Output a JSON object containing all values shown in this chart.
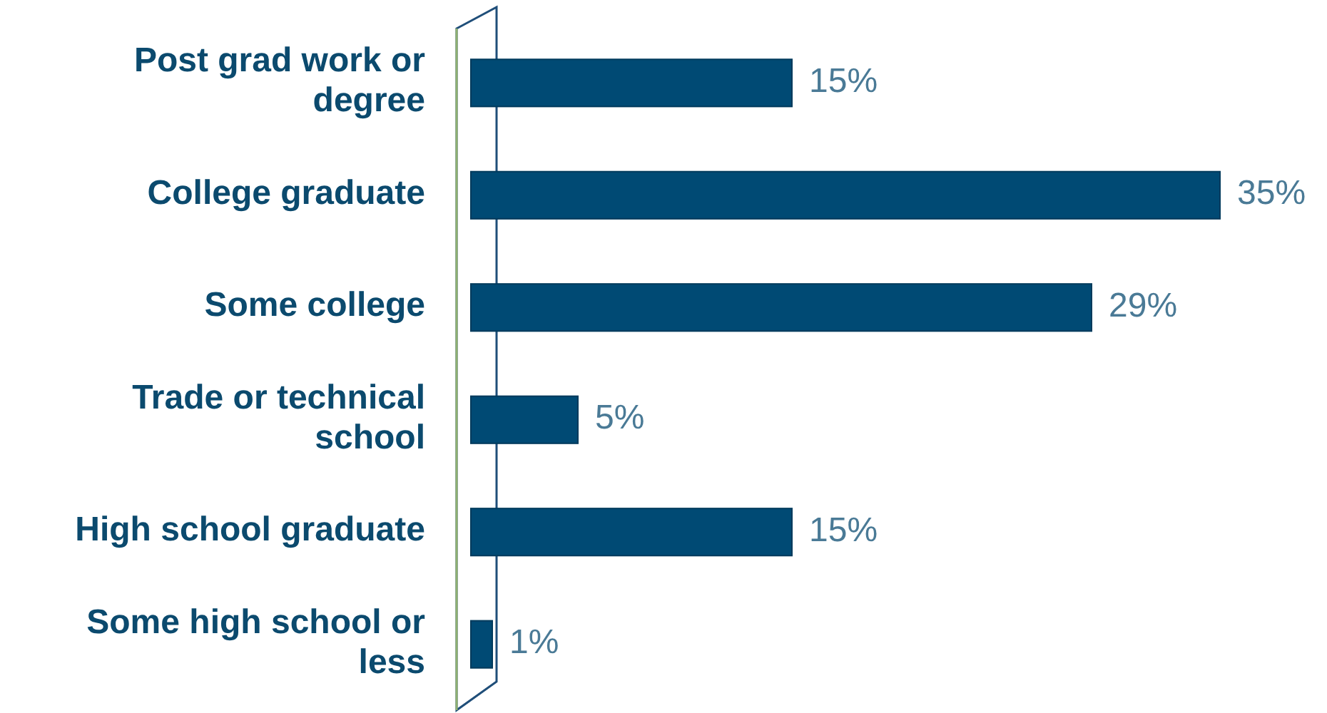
{
  "chart_data": {
    "type": "bar",
    "orientation": "horizontal",
    "categories": [
      "Post grad work or degree",
      "College graduate",
      "Some college",
      "Trade or technical school",
      "High school graduate",
      "Some high school or less"
    ],
    "values": [
      15,
      35,
      29,
      5,
      15,
      1
    ],
    "value_labels": [
      "15%",
      "35%",
      "29%",
      "5%",
      "15%",
      "1%"
    ],
    "color": "#004a74"
  }
}
